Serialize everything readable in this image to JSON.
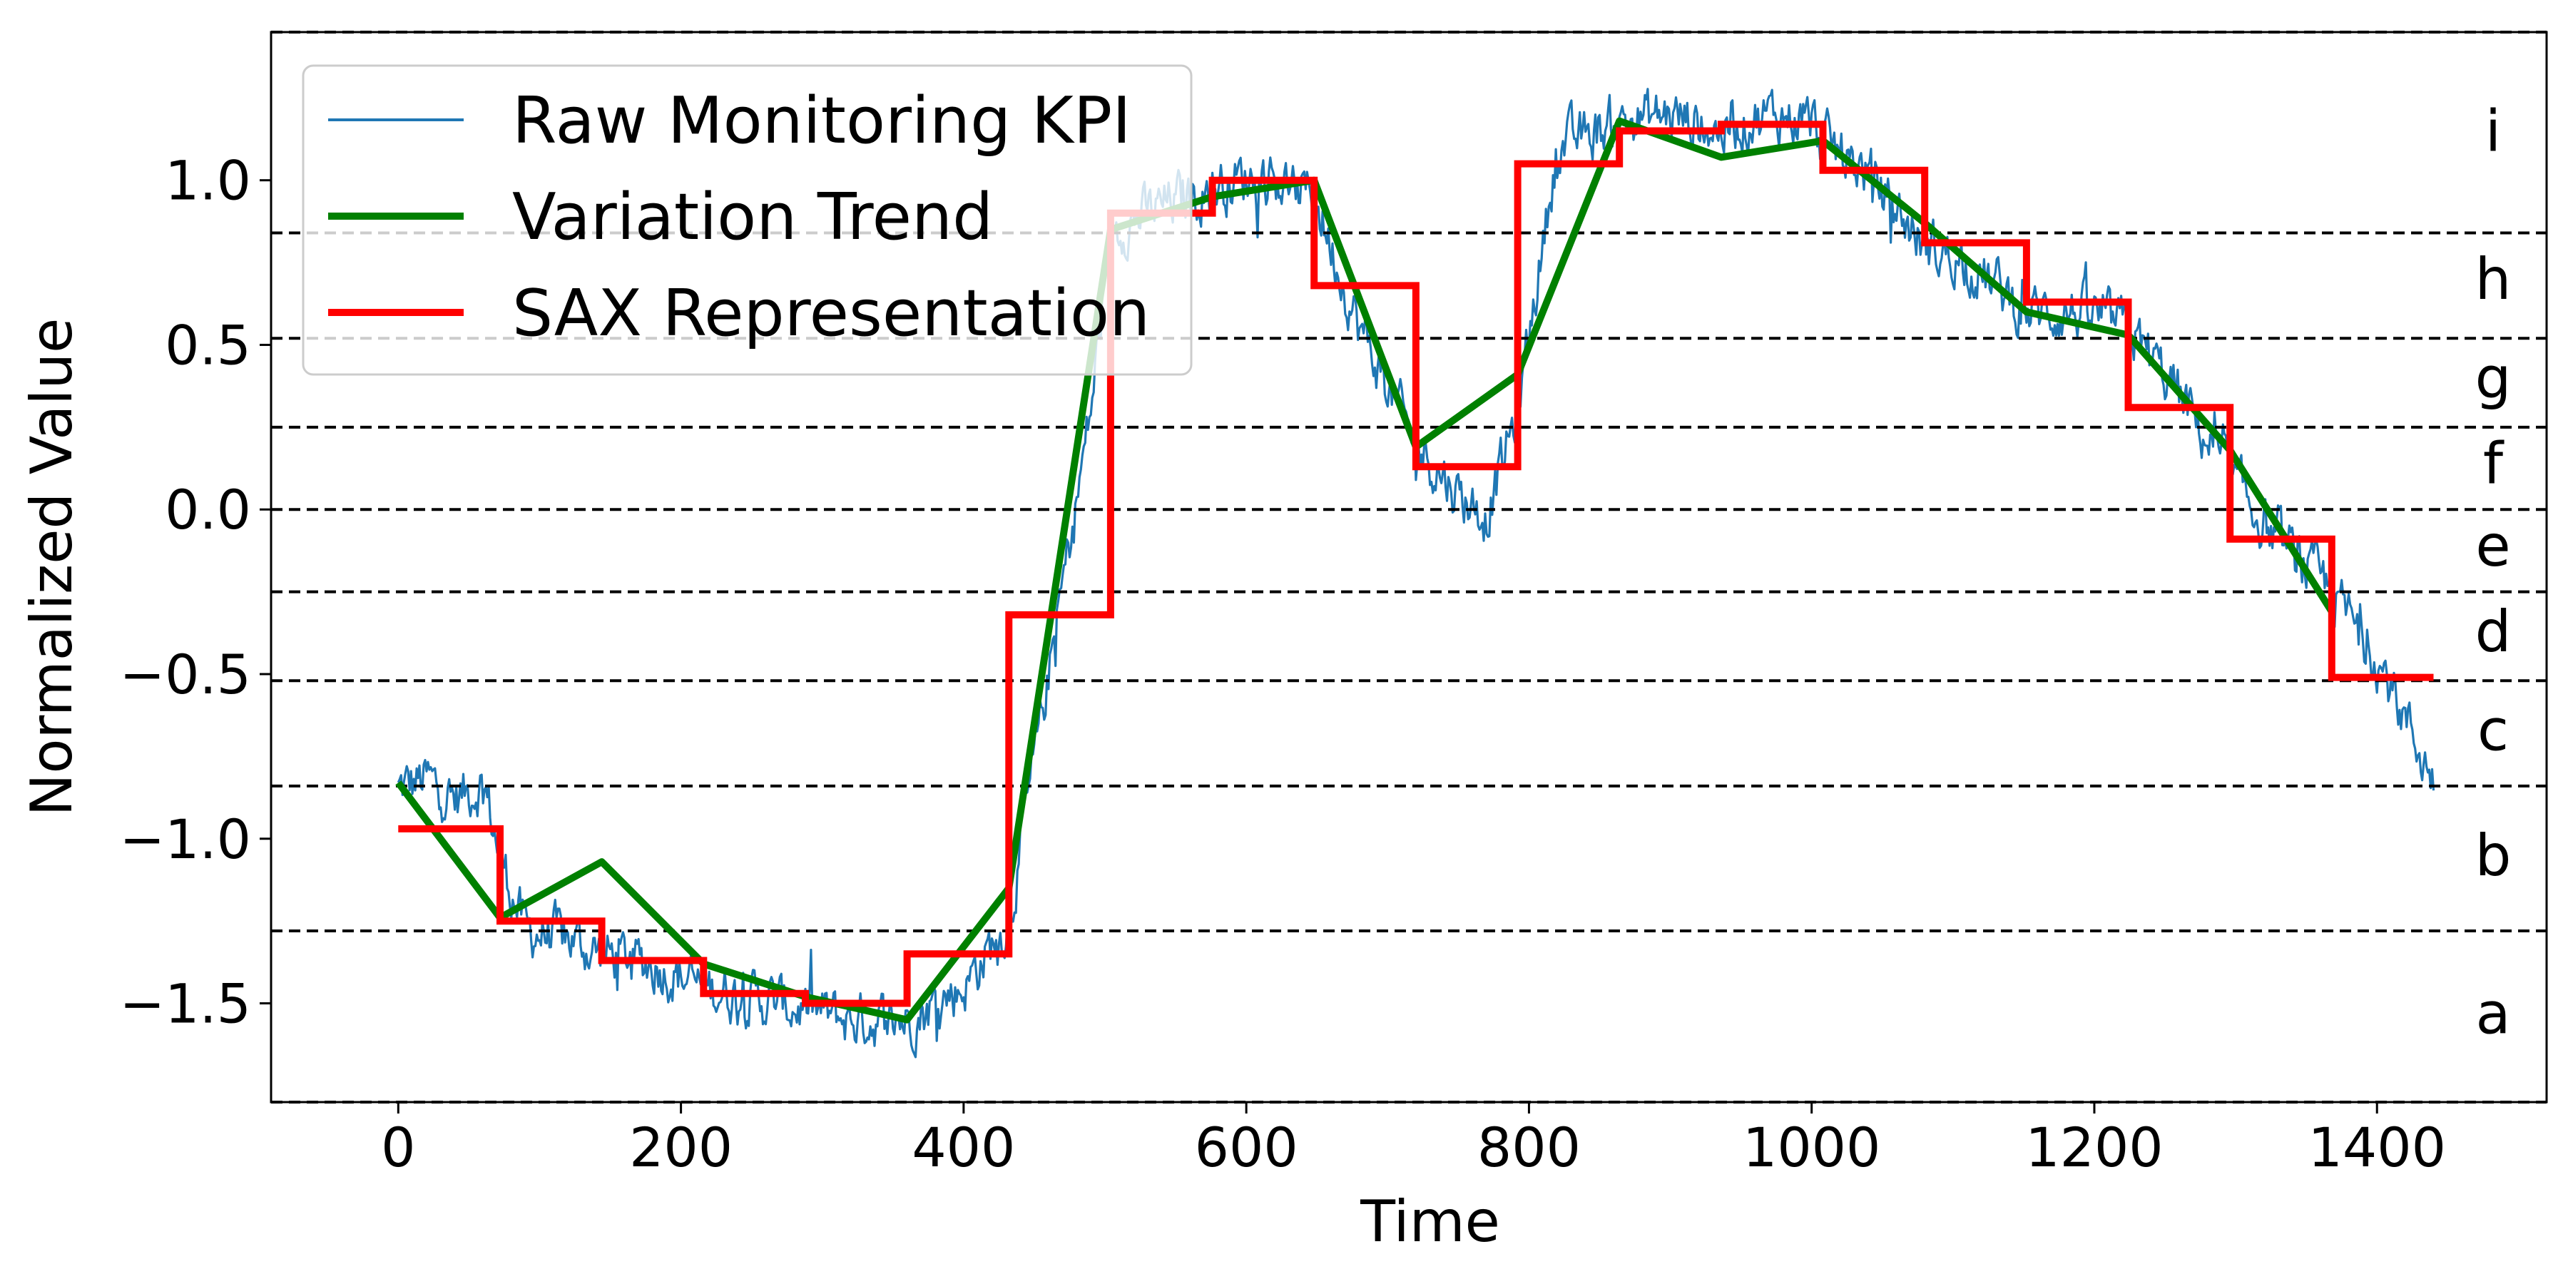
{
  "chart_data": {
    "type": "line",
    "xlabel": "Time",
    "ylabel": "Normalized Value",
    "xlim": [
      -90,
      1520
    ],
    "ylim": [
      -1.8,
      1.45
    ],
    "xticks": [
      0,
      200,
      400,
      600,
      800,
      1000,
      1200,
      1400
    ],
    "yticks": [
      -1.5,
      -1.0,
      -0.5,
      0.0,
      0.5,
      1.0
    ],
    "xtick_labels": [
      "0",
      "200",
      "400",
      "600",
      "800",
      "1000",
      "1200",
      "1400"
    ],
    "ytick_labels": [
      "−1.5",
      "−1.0",
      "−0.5",
      "0.0",
      "0.5",
      "1.0"
    ],
    "breakpoints": [
      -1.8,
      -1.28,
      -0.84,
      -0.52,
      -0.25,
      0.0,
      0.25,
      0.52,
      0.84,
      1.45
    ],
    "band_labels": [
      {
        "letter": "a",
        "y": -1.53
      },
      {
        "letter": "b",
        "y": -1.05
      },
      {
        "letter": "c",
        "y": -0.67
      },
      {
        "letter": "d",
        "y": -0.37
      },
      {
        "letter": "e",
        "y": -0.11
      },
      {
        "letter": "f",
        "y": 0.14
      },
      {
        "letter": "g",
        "y": 0.4
      },
      {
        "letter": "h",
        "y": 0.7
      },
      {
        "letter": "i",
        "y": 1.15
      }
    ],
    "legend": {
      "position": "top-left",
      "entries": [
        "Raw Monitoring KPI",
        "Variation Trend",
        "SAX Representation"
      ]
    },
    "colors": {
      "raw": "#1f77b4",
      "trend": "#008000",
      "sax": "#ff0000",
      "grid": "#000000"
    },
    "series": [
      {
        "name": "Raw Monitoring KPI",
        "kind": "raw",
        "anchors_x": [
          0,
          20,
          40,
          60,
          72,
          90,
          120,
          144,
          180,
          216,
          250,
          288,
          320,
          360,
          400,
          432,
          460,
          490,
          504,
          540,
          576,
          610,
          648,
          680,
          720,
          750,
          770,
          792,
          820,
          864,
          900,
          936,
          970,
          1000,
          1008,
          1040,
          1080,
          1110,
          1152,
          1190,
          1224,
          1260,
          1296,
          1330,
          1368,
          1400,
          1440
        ],
        "anchors_y": [
          -0.85,
          -0.82,
          -0.88,
          -0.83,
          -1.05,
          -1.28,
          -1.3,
          -1.35,
          -1.38,
          -1.45,
          -1.48,
          -1.52,
          -1.55,
          -1.55,
          -1.45,
          -1.25,
          -0.5,
          0.3,
          0.85,
          0.92,
          0.98,
          1.02,
          0.95,
          0.55,
          0.2,
          0.05,
          -0.02,
          0.3,
          1.1,
          1.18,
          1.2,
          1.15,
          1.2,
          1.18,
          1.12,
          1.02,
          0.8,
          0.75,
          0.6,
          0.6,
          0.55,
          0.35,
          0.1,
          -0.1,
          -0.25,
          -0.45,
          -0.82
        ],
        "noise_amplitude": 0.07
      },
      {
        "name": "Variation Trend",
        "kind": "line",
        "x": [
          0,
          72,
          144,
          216,
          288,
          360,
          432,
          504,
          576,
          648,
          720,
          792,
          864,
          936,
          1008,
          1080,
          1152,
          1224,
          1296,
          1368
        ],
        "y": [
          -0.83,
          -1.24,
          -1.07,
          -1.38,
          -1.48,
          -1.55,
          -1.15,
          0.85,
          0.95,
          1.0,
          0.19,
          0.41,
          1.18,
          1.07,
          1.12,
          0.87,
          0.6,
          0.53,
          0.18,
          -0.31
        ]
      },
      {
        "name": "SAX Representation",
        "kind": "step",
        "x_edges": [
          0,
          72,
          144,
          216,
          288,
          360,
          432,
          504,
          576,
          648,
          720,
          792,
          864,
          936,
          1008,
          1080,
          1152,
          1224,
          1296,
          1368,
          1440
        ],
        "y": [
          -0.97,
          -1.25,
          -1.37,
          -1.47,
          -1.5,
          -1.35,
          -0.32,
          0.9,
          1.0,
          0.68,
          0.13,
          1.05,
          1.15,
          1.17,
          1.03,
          0.81,
          0.63,
          0.31,
          -0.09,
          -0.51
        ]
      }
    ]
  }
}
